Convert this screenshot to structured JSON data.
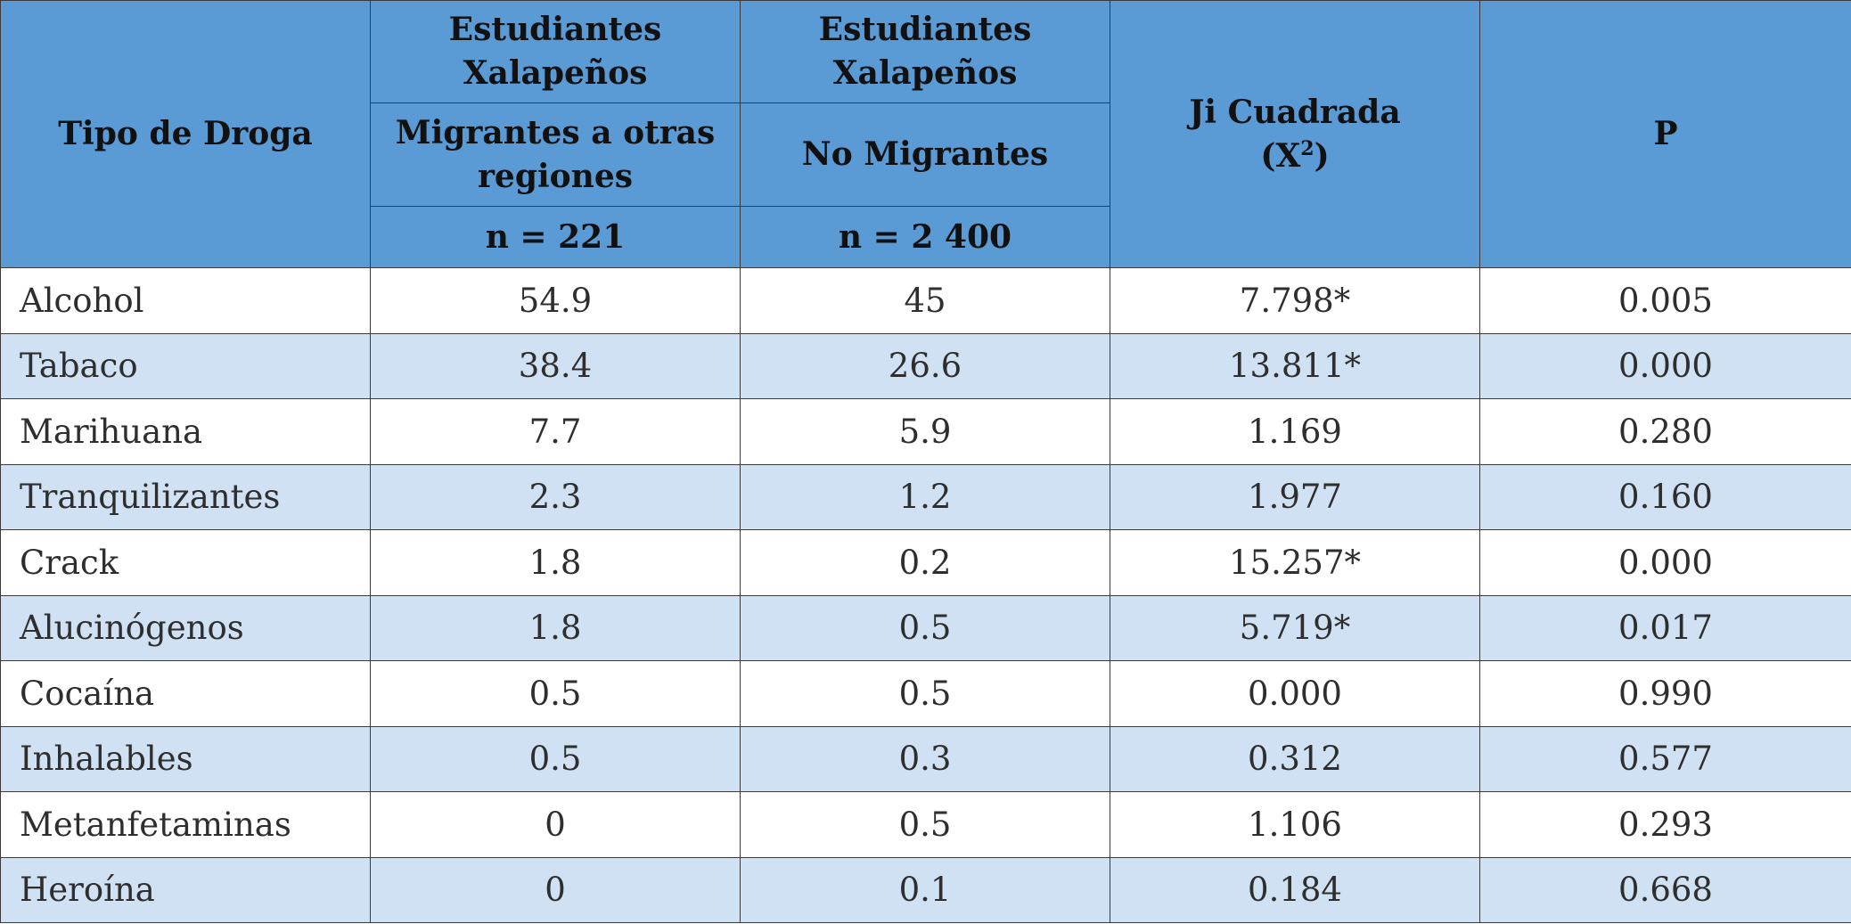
{
  "header": {
    "col1": "Tipo de Droga",
    "group1": {
      "title_line1": "Estudiantes",
      "title_line2": "Xalapeños",
      "subtitle_line1": "Migrantes a otras",
      "subtitle_line2": "regiones",
      "n": "n = 221"
    },
    "group2": {
      "title_line1": "Estudiantes",
      "title_line2": "Xalapeños",
      "subtitle": "No Migrantes",
      "n": "n = 2 400"
    },
    "col4_line1": "Ji Cuadrada",
    "col4_line2": "(X",
    "col4_sup": "2",
    "col4_close": ")",
    "col5": "P"
  },
  "rows": [
    {
      "drug": "Alcohol",
      "migrantes": "54.9",
      "no_migrantes": "45",
      "ji": "7.798*",
      "p": "0.005"
    },
    {
      "drug": "Tabaco",
      "migrantes": "38.4",
      "no_migrantes": "26.6",
      "ji": "13.811*",
      "p": "0.000"
    },
    {
      "drug": "Marihuana",
      "migrantes": "7.7",
      "no_migrantes": "5.9",
      "ji": "1.169",
      "p": "0.280"
    },
    {
      "drug": "Tranquilizantes",
      "migrantes": "2.3",
      "no_migrantes": "1.2",
      "ji": "1.977",
      "p": "0.160"
    },
    {
      "drug": "Crack",
      "migrantes": "1.8",
      "no_migrantes": "0.2",
      "ji": "15.257*",
      "p": "0.000"
    },
    {
      "drug": "Alucinógenos",
      "migrantes": "1.8",
      "no_migrantes": "0.5",
      "ji": "5.719*",
      "p": "0.017"
    },
    {
      "drug": "Cocaína",
      "migrantes": "0.5",
      "no_migrantes": "0.5",
      "ji": "0.000",
      "p": "0.990"
    },
    {
      "drug": "Inhalables",
      "migrantes": "0.5",
      "no_migrantes": "0.3",
      "ji": "0.312",
      "p": "0.577"
    },
    {
      "drug": "Metanfetaminas",
      "migrantes": "0",
      "no_migrantes": "0.5",
      "ji": "1.106",
      "p": "0.293"
    },
    {
      "drug": "Heroína",
      "migrantes": "0",
      "no_migrantes": "0.1",
      "ji": "0.184",
      "p": "0.668"
    }
  ]
}
